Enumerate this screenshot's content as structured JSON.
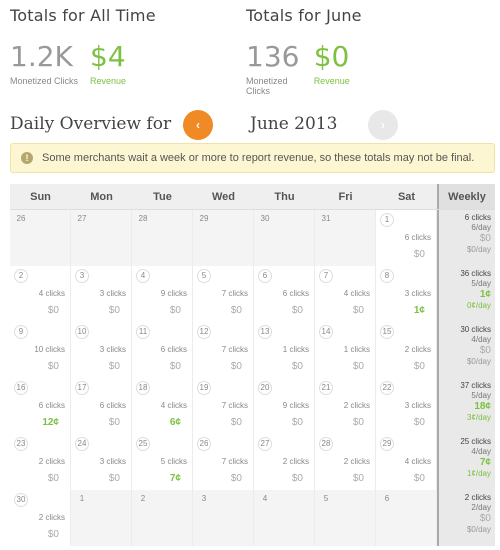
{
  "totals": {
    "all_time": {
      "title": "Totals for All Time",
      "clicks_value": "1.2K",
      "clicks_label": "Monetized Clicks",
      "revenue_value": "$4",
      "revenue_label": "Revenue"
    },
    "month": {
      "title": "Totals for June",
      "clicks_value": "136",
      "clicks_label": "Monetized Clicks",
      "revenue_value": "$0",
      "revenue_label": "Revenue"
    }
  },
  "overview": {
    "title": "Daily Overview for",
    "month_label": "June 2013",
    "prev_icon": "‹",
    "next_icon": "›"
  },
  "alert": {
    "icon": "!",
    "text": "Some merchants wait a week or more to report revenue, so these totals may not be final."
  },
  "calendar": {
    "headers": [
      "Sun",
      "Mon",
      "Tue",
      "Wed",
      "Thu",
      "Fri",
      "Sat",
      "Weekly"
    ],
    "weeks": [
      {
        "days": [
          {
            "num": "26",
            "out": true
          },
          {
            "num": "27",
            "out": true
          },
          {
            "num": "28",
            "out": true
          },
          {
            "num": "29",
            "out": true
          },
          {
            "num": "30",
            "out": true
          },
          {
            "num": "31",
            "out": true
          },
          {
            "num": "1",
            "clicks": "6 clicks",
            "rev": "$0"
          }
        ],
        "weekly": {
          "clicks": "6 clicks",
          "per_day": "6/day",
          "rev": "$0",
          "rev_per_day": "$0/day"
        }
      },
      {
        "days": [
          {
            "num": "2",
            "clicks": "4 clicks",
            "rev": "$0"
          },
          {
            "num": "3",
            "clicks": "3 clicks",
            "rev": "$0"
          },
          {
            "num": "4",
            "clicks": "9 clicks",
            "rev": "$0"
          },
          {
            "num": "5",
            "clicks": "7 clicks",
            "rev": "$0"
          },
          {
            "num": "6",
            "clicks": "6 clicks",
            "rev": "$0"
          },
          {
            "num": "7",
            "clicks": "4 clicks",
            "rev": "$0"
          },
          {
            "num": "8",
            "clicks": "3 clicks",
            "rev": "1¢",
            "green": true
          }
        ],
        "weekly": {
          "clicks": "36 clicks",
          "per_day": "5/day",
          "rev": "1¢",
          "rev_per_day": "0¢/day",
          "green": true
        }
      },
      {
        "days": [
          {
            "num": "9",
            "clicks": "10 clicks",
            "rev": "$0"
          },
          {
            "num": "10",
            "clicks": "3 clicks",
            "rev": "$0"
          },
          {
            "num": "11",
            "clicks": "6 clicks",
            "rev": "$0"
          },
          {
            "num": "12",
            "clicks": "7 clicks",
            "rev": "$0"
          },
          {
            "num": "13",
            "clicks": "1 clicks",
            "rev": "$0"
          },
          {
            "num": "14",
            "clicks": "1 clicks",
            "rev": "$0"
          },
          {
            "num": "15",
            "clicks": "2 clicks",
            "rev": "$0"
          }
        ],
        "weekly": {
          "clicks": "30 clicks",
          "per_day": "4/day",
          "rev": "$0",
          "rev_per_day": "$0/day"
        }
      },
      {
        "days": [
          {
            "num": "16",
            "clicks": "6 clicks",
            "rev": "12¢",
            "green": true
          },
          {
            "num": "17",
            "clicks": "6 clicks",
            "rev": "$0"
          },
          {
            "num": "18",
            "clicks": "4 clicks",
            "rev": "6¢",
            "green": true
          },
          {
            "num": "19",
            "clicks": "7 clicks",
            "rev": "$0"
          },
          {
            "num": "20",
            "clicks": "9 clicks",
            "rev": "$0"
          },
          {
            "num": "21",
            "clicks": "2 clicks",
            "rev": "$0"
          },
          {
            "num": "22",
            "clicks": "3 clicks",
            "rev": "$0"
          }
        ],
        "weekly": {
          "clicks": "37 clicks",
          "per_day": "5/day",
          "rev": "18¢",
          "rev_per_day": "3¢/day",
          "green": true
        }
      },
      {
        "days": [
          {
            "num": "23",
            "clicks": "2 clicks",
            "rev": "$0"
          },
          {
            "num": "24",
            "clicks": "3 clicks",
            "rev": "$0"
          },
          {
            "num": "25",
            "clicks": "5 clicks",
            "rev": "7¢",
            "green": true
          },
          {
            "num": "26",
            "clicks": "7 clicks",
            "rev": "$0"
          },
          {
            "num": "27",
            "clicks": "2 clicks",
            "rev": "$0"
          },
          {
            "num": "28",
            "clicks": "2 clicks",
            "rev": "$0"
          },
          {
            "num": "29",
            "clicks": "4 clicks",
            "rev": "$0"
          }
        ],
        "weekly": {
          "clicks": "25 clicks",
          "per_day": "4/day",
          "rev": "7¢",
          "rev_per_day": "1¢/day",
          "green": true
        }
      },
      {
        "days": [
          {
            "num": "30",
            "clicks": "2 clicks",
            "rev": "$0"
          },
          {
            "num": "1",
            "out": true
          },
          {
            "num": "2",
            "out": true
          },
          {
            "num": "3",
            "out": true
          },
          {
            "num": "4",
            "out": true
          },
          {
            "num": "5",
            "out": true
          },
          {
            "num": "6",
            "out": true
          }
        ],
        "weekly": {
          "clicks": "2 clicks",
          "per_day": "2/day",
          "rev": "$0",
          "rev_per_day": "$0/day"
        }
      }
    ]
  },
  "colors": {
    "accent_orange": "#f08a24",
    "revenue_green": "#7dc142",
    "alert_bg": "#fdf6d3"
  }
}
